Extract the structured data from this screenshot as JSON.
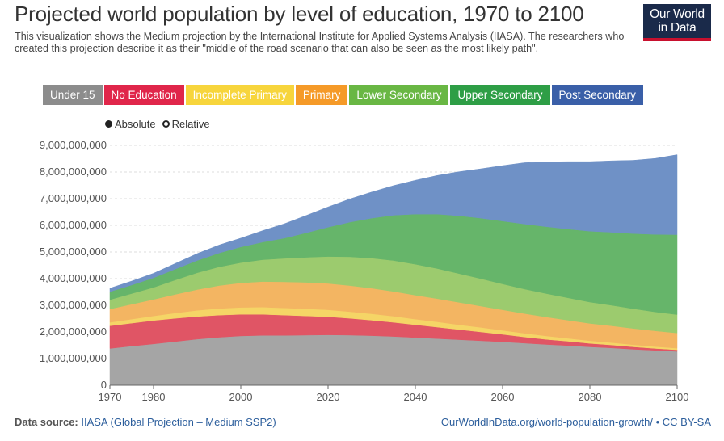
{
  "title": "Projected world population by level of education, 1970 to 2100",
  "subtitle": "This visualization shows the Medium projection by the International Institute for Applied Systems Analysis (IIASA). The researchers who created this projection describe it as their \"middle of the road scenario that can also be seen as the most likely path\".",
  "logo": {
    "line1": "Our World",
    "line2": "in Data",
    "bg": "#1a2a4a",
    "accent": "#c8102e"
  },
  "toggle": {
    "absolute": "Absolute",
    "relative": "Relative",
    "selected": "absolute"
  },
  "footer": {
    "source_label": "Data source:",
    "source_text": "IIASA (Global Projection – Medium SSP2)",
    "url": "OurWorldInData.org/world-population-growth/",
    "license": "CC BY-SA"
  },
  "chart_data": {
    "type": "area",
    "stacked": true,
    "x": [
      1970,
      1975,
      1980,
      1985,
      1990,
      1995,
      2000,
      2005,
      2010,
      2015,
      2020,
      2025,
      2030,
      2035,
      2040,
      2045,
      2050,
      2055,
      2060,
      2065,
      2070,
      2075,
      2080,
      2085,
      2090,
      2095,
      2100
    ],
    "xlim": [
      1970,
      2100
    ],
    "xticks": [
      1970,
      1980,
      2000,
      2020,
      2040,
      2060,
      2080,
      2100
    ],
    "ylim": [
      0,
      9000000000
    ],
    "yticks": [
      0,
      1000000000,
      2000000000,
      3000000000,
      4000000000,
      5000000000,
      6000000000,
      7000000000,
      8000000000,
      9000000000
    ],
    "ytick_labels": [
      "0",
      "1,000,000,000",
      "2,000,000,000",
      "3,000,000,000",
      "4,000,000,000",
      "5,000,000,000",
      "6,000,000,000",
      "7,000,000,000",
      "8,000,000,000",
      "9,000,000,000"
    ],
    "series": [
      {
        "name": "Under 15",
        "color": "#a5a5a5",
        "values": [
          1380000000,
          1470000000,
          1550000000,
          1640000000,
          1730000000,
          1800000000,
          1850000000,
          1870000000,
          1870000000,
          1880000000,
          1890000000,
          1880000000,
          1860000000,
          1830000000,
          1790000000,
          1750000000,
          1710000000,
          1670000000,
          1630000000,
          1580000000,
          1530000000,
          1490000000,
          1440000000,
          1400000000,
          1350000000,
          1310000000,
          1270000000
        ]
      },
      {
        "name": "No Education",
        "color": "#e05565",
        "values": [
          850000000,
          860000000,
          880000000,
          870000000,
          850000000,
          830000000,
          810000000,
          790000000,
          760000000,
          720000000,
          680000000,
          630000000,
          580000000,
          530000000,
          480000000,
          430000000,
          380000000,
          330000000,
          280000000,
          230000000,
          190000000,
          160000000,
          130000000,
          110000000,
          90000000,
          70000000,
          60000000
        ]
      },
      {
        "name": "Incomplete Primary",
        "color": "#f5d566",
        "values": [
          130000000,
          150000000,
          170000000,
          200000000,
          230000000,
          250000000,
          260000000,
          270000000,
          270000000,
          270000000,
          260000000,
          250000000,
          240000000,
          230000000,
          210000000,
          200000000,
          180000000,
          170000000,
          150000000,
          140000000,
          130000000,
          110000000,
          100000000,
          90000000,
          80000000,
          70000000,
          60000000
        ]
      },
      {
        "name": "Primary",
        "color": "#f3b562",
        "values": [
          500000000,
          560000000,
          620000000,
          700000000,
          780000000,
          860000000,
          920000000,
          960000000,
          980000000,
          990000000,
          990000000,
          980000000,
          960000000,
          930000000,
          900000000,
          870000000,
          840000000,
          800000000,
          770000000,
          740000000,
          710000000,
          680000000,
          650000000,
          630000000,
          610000000,
          590000000,
          570000000
        ]
      },
      {
        "name": "Lower Secondary",
        "color": "#9ccb6e",
        "values": [
          350000000,
          400000000,
          450000000,
          540000000,
          630000000,
          700000000,
          760000000,
          820000000,
          880000000,
          940000000,
          1010000000,
          1080000000,
          1130000000,
          1160000000,
          1160000000,
          1130000000,
          1080000000,
          1030000000,
          970000000,
          920000000,
          880000000,
          840000000,
          800000000,
          770000000,
          740000000,
          710000000,
          690000000
        ]
      },
      {
        "name": "Upper Secondary",
        "color": "#66b56a",
        "values": [
          300000000,
          320000000,
          360000000,
          410000000,
          460000000,
          520000000,
          590000000,
          660000000,
          760000000,
          920000000,
          1100000000,
          1300000000,
          1500000000,
          1700000000,
          1880000000,
          2040000000,
          2170000000,
          2270000000,
          2360000000,
          2440000000,
          2510000000,
          2580000000,
          2660000000,
          2740000000,
          2820000000,
          2910000000,
          3000000000
        ]
      },
      {
        "name": "Post Secondary",
        "color": "#6f91c6",
        "values": [
          130000000,
          150000000,
          170000000,
          210000000,
          260000000,
          300000000,
          330000000,
          430000000,
          540000000,
          650000000,
          760000000,
          870000000,
          980000000,
          1110000000,
          1270000000,
          1450000000,
          1650000000,
          1850000000,
          2080000000,
          2300000000,
          2430000000,
          2530000000,
          2610000000,
          2680000000,
          2750000000,
          2850000000,
          3000000000
        ]
      }
    ],
    "legend": [
      {
        "name": "Under 15",
        "color": "#8c8c8c"
      },
      {
        "name": "No Education",
        "color": "#e0264a"
      },
      {
        "name": "Incomplete Primary",
        "color": "#f7d53c"
      },
      {
        "name": "Primary",
        "color": "#f59a28"
      },
      {
        "name": "Lower Secondary",
        "color": "#69b744"
      },
      {
        "name": "Upper Secondary",
        "color": "#2e9e46"
      },
      {
        "name": "Post Secondary",
        "color": "#3a5fa8"
      }
    ]
  }
}
